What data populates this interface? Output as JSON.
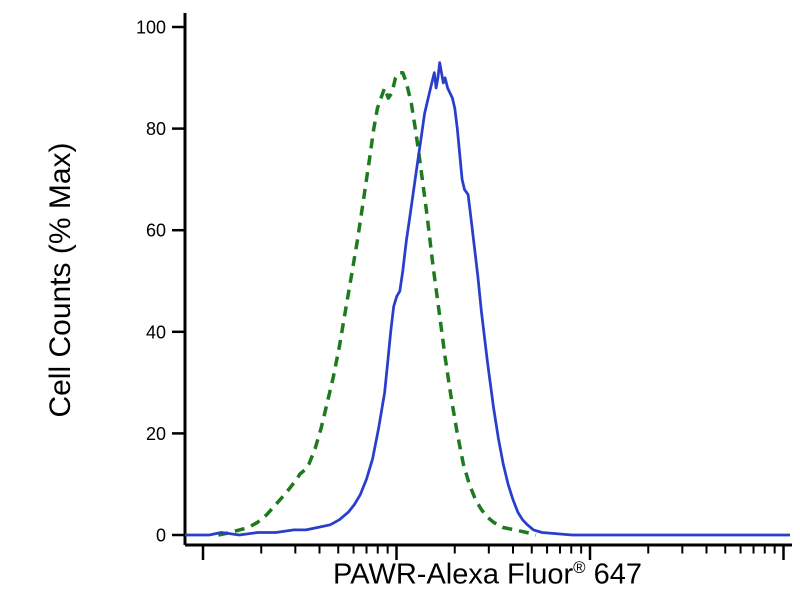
{
  "figure": {
    "background": "#ffffff",
    "axis_color": "#000000"
  },
  "chart_data": {
    "type": "line",
    "subtype": "flow-cytometry-histogram-overlay",
    "title": "",
    "xlabel": "PAWR-Alexa Fluor® 647",
    "xlabel_parts": {
      "main": "PAWR-Alexa Fluor",
      "sup": "®",
      "suffix": " 647"
    },
    "ylabel": "Cell Counts (% Max)",
    "ylim": [
      0,
      100
    ],
    "y_ticks": [
      0,
      20,
      40,
      60,
      80,
      100
    ],
    "x_axis": {
      "scale": "log",
      "decades": 3,
      "tick_labels": [],
      "grid": false
    },
    "legend": {
      "visible": false
    },
    "series": [
      {
        "name": "control-dashed",
        "color": "#1e7a1e",
        "dash": [
          10,
          7
        ],
        "width": 3.5,
        "peak_percent": 91,
        "points": [
          [
            0.055,
            0
          ],
          [
            0.075,
            0.5
          ],
          [
            0.09,
            1
          ],
          [
            0.105,
            1.5
          ],
          [
            0.12,
            2.5
          ],
          [
            0.135,
            4
          ],
          [
            0.15,
            6
          ],
          [
            0.165,
            8
          ],
          [
            0.175,
            9.5
          ],
          [
            0.185,
            11
          ],
          [
            0.19,
            12
          ],
          [
            0.2,
            13
          ],
          [
            0.205,
            14
          ],
          [
            0.215,
            17
          ],
          [
            0.225,
            21
          ],
          [
            0.235,
            26
          ],
          [
            0.245,
            31
          ],
          [
            0.255,
            37
          ],
          [
            0.265,
            44
          ],
          [
            0.275,
            51
          ],
          [
            0.285,
            58
          ],
          [
            0.295,
            66
          ],
          [
            0.305,
            74
          ],
          [
            0.312,
            80
          ],
          [
            0.318,
            84
          ],
          [
            0.324,
            86
          ],
          [
            0.33,
            88
          ],
          [
            0.336,
            86
          ],
          [
            0.342,
            87
          ],
          [
            0.348,
            90
          ],
          [
            0.354,
            91
          ],
          [
            0.36,
            91
          ],
          [
            0.366,
            89
          ],
          [
            0.374,
            85
          ],
          [
            0.382,
            79
          ],
          [
            0.39,
            72
          ],
          [
            0.4,
            63
          ],
          [
            0.41,
            53
          ],
          [
            0.42,
            44
          ],
          [
            0.43,
            35
          ],
          [
            0.44,
            27
          ],
          [
            0.45,
            20
          ],
          [
            0.46,
            14
          ],
          [
            0.47,
            10
          ],
          [
            0.48,
            7
          ],
          [
            0.49,
            5
          ],
          [
            0.5,
            3.5
          ],
          [
            0.51,
            2.5
          ],
          [
            0.525,
            1.5
          ],
          [
            0.545,
            1
          ],
          [
            0.565,
            0.5
          ],
          [
            0.58,
            0
          ]
        ]
      },
      {
        "name": "pawr-stained-solid",
        "color": "#2a3ecc",
        "dash": null,
        "width": 2.75,
        "peak_percent": 93,
        "points": [
          [
            0.0,
            0
          ],
          [
            0.04,
            0
          ],
          [
            0.06,
            0.5
          ],
          [
            0.09,
            0
          ],
          [
            0.12,
            0.5
          ],
          [
            0.15,
            0.5
          ],
          [
            0.18,
            1
          ],
          [
            0.2,
            1
          ],
          [
            0.22,
            1.5
          ],
          [
            0.24,
            2
          ],
          [
            0.255,
            3
          ],
          [
            0.27,
            4.5
          ],
          [
            0.28,
            6
          ],
          [
            0.29,
            8
          ],
          [
            0.3,
            11
          ],
          [
            0.31,
            15
          ],
          [
            0.32,
            21
          ],
          [
            0.33,
            28
          ],
          [
            0.335,
            34
          ],
          [
            0.34,
            40
          ],
          [
            0.345,
            45
          ],
          [
            0.35,
            47
          ],
          [
            0.355,
            48
          ],
          [
            0.36,
            52
          ],
          [
            0.366,
            58
          ],
          [
            0.372,
            63
          ],
          [
            0.378,
            68
          ],
          [
            0.384,
            73
          ],
          [
            0.39,
            78
          ],
          [
            0.396,
            83
          ],
          [
            0.402,
            86
          ],
          [
            0.408,
            89
          ],
          [
            0.412,
            91
          ],
          [
            0.415,
            88
          ],
          [
            0.418,
            90
          ],
          [
            0.421,
            93
          ],
          [
            0.424,
            91
          ],
          [
            0.427,
            89
          ],
          [
            0.43,
            90
          ],
          [
            0.434,
            88
          ],
          [
            0.438,
            87
          ],
          [
            0.442,
            86
          ],
          [
            0.446,
            84
          ],
          [
            0.45,
            80
          ],
          [
            0.454,
            75
          ],
          [
            0.458,
            70
          ],
          [
            0.462,
            68
          ],
          [
            0.468,
            67
          ],
          [
            0.472,
            63
          ],
          [
            0.478,
            57
          ],
          [
            0.484,
            51
          ],
          [
            0.49,
            44
          ],
          [
            0.5,
            34
          ],
          [
            0.51,
            25
          ],
          [
            0.518,
            19
          ],
          [
            0.526,
            14
          ],
          [
            0.534,
            10
          ],
          [
            0.542,
            7
          ],
          [
            0.55,
            4.5
          ],
          [
            0.558,
            3
          ],
          [
            0.566,
            2
          ],
          [
            0.576,
            1
          ],
          [
            0.59,
            0.5
          ],
          [
            0.61,
            0.3
          ],
          [
            0.64,
            0
          ],
          [
            0.75,
            0
          ],
          [
            0.88,
            0
          ],
          [
            1.0,
            0
          ]
        ]
      }
    ]
  }
}
